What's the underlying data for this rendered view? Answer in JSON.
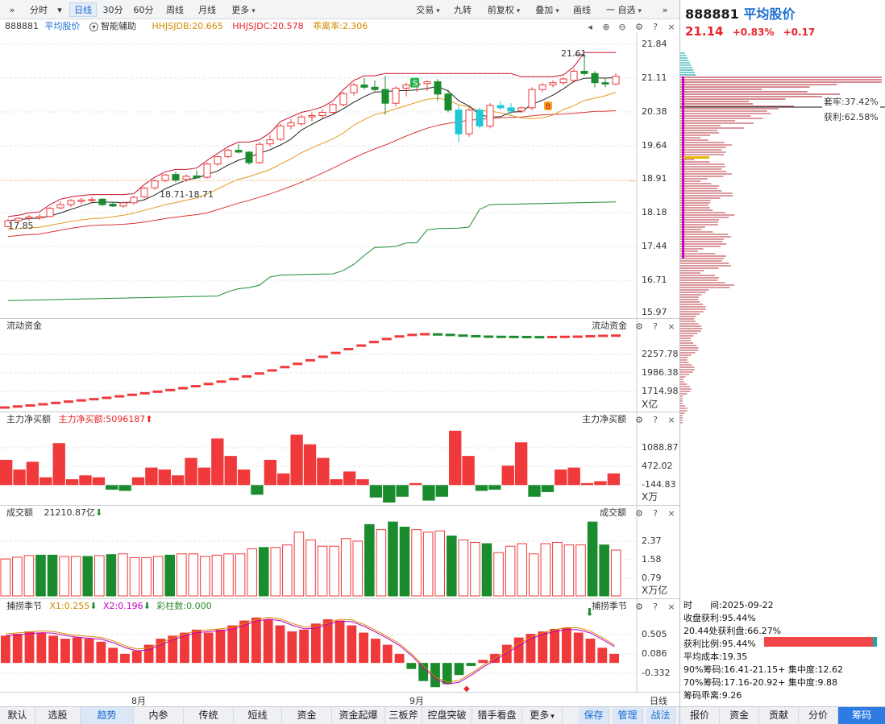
{
  "toolbar": {
    "collapse_icon": "double-chevron-right-icon",
    "periods": [
      "分时",
      "日线",
      "30分",
      "60分",
      "周线",
      "月线",
      "更多"
    ],
    "right_items": [
      "交易",
      "九转",
      "前复权",
      "叠加",
      "画线",
      "一 自选"
    ],
    "right_collapse_icon": "double-chevron-right-icon"
  },
  "main_header": {
    "code": "888881",
    "name": "平均股价",
    "assist": "智能辅助",
    "indicators": [
      {
        "text": "HHJSJDB:20.665",
        "color": "#d48a00"
      },
      {
        "text": "HHJSJDC:20.578",
        "color": "#e8242a"
      },
      {
        "text": "乖离率:2.306",
        "color": "#d48a00"
      }
    ]
  },
  "main_axis": [
    "21.84",
    "21.11",
    "20.38",
    "19.64",
    "18.91",
    "18.18",
    "17.44",
    "16.71",
    "15.97"
  ],
  "main_annotations": {
    "high": "21.61",
    "low": "17.85",
    "mid_label": "18.71-18.71",
    "signal_s": "S",
    "signal_b": "B"
  },
  "panes": {
    "liquidity": {
      "title": "流动资金",
      "title_right": "流动资金",
      "axis": [
        "2257.78",
        "1986.38",
        "1714.98"
      ],
      "unit": "X亿"
    },
    "main_net": {
      "title": "主力净买额",
      "indicator": "主力净买额:5096187",
      "title_right": "主力净买额",
      "axis": [
        "1088.87",
        "472.02",
        "-144.83"
      ],
      "unit": "X万"
    },
    "turnover": {
      "title": "成交额",
      "indicator": "21210.87亿",
      "title_right": "成交额",
      "axis": [
        "2.37",
        "1.58",
        "0.79"
      ],
      "unit": "X万亿"
    },
    "season": {
      "title": "捕捞季节",
      "indicators": [
        {
          "text": "X1:0.255",
          "color": "#d48a00"
        },
        {
          "text": "X2:0.196",
          "color": "#c000c0"
        },
        {
          "text": "彩柱数:0.000",
          "color": "#2a8a2a"
        }
      ],
      "title_right": "捕捞季节",
      "axis": [
        "0.505",
        "0.086",
        "-0.332"
      ]
    }
  },
  "x_axis": {
    "months": [
      "8月",
      "9月"
    ],
    "period_label": "日线"
  },
  "bottom_tabs": [
    "默认",
    "选股",
    "趋势",
    "内参",
    "传统",
    "短线",
    "资金",
    "资金起爆",
    "三板斧",
    "控盘突破",
    "猎手看盘",
    "更多",
    "保存",
    "管理",
    "战法"
  ],
  "bottom_active": "趋势",
  "right_panel": {
    "code": "888881",
    "name": "平均股价",
    "price": "21.14",
    "change_pct": "+0.83%",
    "change": "+0.17",
    "chip_labels": {
      "locked": "套牢:37.42%",
      "profit": "获利:62.58%"
    },
    "stats": [
      "时　　间:2025-09-22",
      "收盘获利:95.44%",
      "20.44处获利盘:66.27%",
      "获利比例:95.44%",
      "平均成本:19.35",
      "90%筹码:16.41-21.15+ 集中度:12.62",
      "70%筹码:17.16-20.92+ 集中度:9.88",
      "筹码乖离:9.26"
    ],
    "tabs": [
      "报价",
      "资金",
      "贡献",
      "分价",
      "筹码"
    ],
    "active_tab": "筹码"
  },
  "colors": {
    "up": "#f0393b",
    "down": "#1b8c2e",
    "accent": "#1a6fd1"
  },
  "chart_data": {
    "type": "candlestick",
    "x_months": [
      "8月",
      "9月"
    ],
    "ohlc": [
      [
        17.85,
        18.02,
        17.83,
        17.98
      ],
      [
        17.98,
        18.05,
        17.92,
        18.03
      ],
      [
        18.03,
        18.1,
        17.98,
        18.06
      ],
      [
        18.04,
        18.12,
        18.0,
        18.07
      ],
      [
        18.07,
        18.28,
        18.05,
        18.25
      ],
      [
        18.26,
        18.4,
        18.22,
        18.33
      ],
      [
        18.33,
        18.45,
        18.28,
        18.42
      ],
      [
        18.4,
        18.48,
        18.35,
        18.43
      ],
      [
        18.43,
        18.5,
        18.38,
        18.44
      ],
      [
        18.45,
        18.47,
        18.3,
        18.33
      ],
      [
        18.34,
        18.4,
        18.28,
        18.3
      ],
      [
        18.3,
        18.4,
        18.26,
        18.37
      ],
      [
        18.37,
        18.52,
        18.33,
        18.49
      ],
      [
        18.5,
        18.72,
        18.46,
        18.69
      ],
      [
        18.7,
        18.88,
        18.65,
        18.85
      ],
      [
        18.86,
        19.0,
        18.82,
        18.98
      ],
      [
        18.99,
        19.05,
        18.82,
        18.87
      ],
      [
        18.88,
        19.0,
        18.83,
        18.95
      ],
      [
        18.96,
        19.08,
        18.9,
        18.92
      ],
      [
        18.93,
        19.25,
        18.9,
        19.22
      ],
      [
        19.22,
        19.4,
        19.18,
        19.38
      ],
      [
        19.38,
        19.55,
        19.35,
        19.52
      ],
      [
        19.52,
        19.65,
        19.45,
        19.48
      ],
      [
        19.48,
        19.5,
        19.2,
        19.25
      ],
      [
        19.25,
        19.7,
        19.22,
        19.65
      ],
      [
        19.66,
        19.85,
        19.6,
        19.75
      ],
      [
        19.76,
        20.1,
        19.72,
        20.05
      ],
      [
        20.05,
        20.2,
        19.98,
        20.12
      ],
      [
        20.1,
        20.3,
        20.05,
        20.25
      ],
      [
        20.25,
        20.35,
        20.15,
        20.28
      ],
      [
        20.28,
        20.42,
        20.2,
        20.35
      ],
      [
        20.35,
        20.55,
        20.3,
        20.52
      ],
      [
        20.52,
        20.8,
        20.48,
        20.76
      ],
      [
        20.78,
        21.0,
        20.72,
        20.95
      ],
      [
        20.95,
        21.1,
        20.85,
        20.9
      ],
      [
        20.9,
        21.05,
        20.8,
        20.85
      ],
      [
        20.85,
        21.15,
        20.3,
        20.55
      ],
      [
        20.55,
        20.92,
        20.48,
        20.88
      ],
      [
        20.88,
        21.0,
        20.7,
        20.95
      ],
      [
        20.95,
        21.05,
        20.8,
        20.98
      ],
      [
        20.98,
        21.05,
        20.82,
        21.02
      ],
      [
        21.02,
        21.08,
        20.6,
        20.75
      ],
      [
        20.75,
        20.85,
        20.35,
        20.4
      ],
      [
        20.4,
        20.5,
        19.7,
        19.88
      ],
      [
        19.88,
        20.45,
        19.82,
        20.4
      ],
      [
        20.4,
        20.45,
        20.0,
        20.05
      ],
      [
        20.05,
        20.55,
        20.0,
        20.5
      ],
      [
        20.5,
        20.6,
        20.4,
        20.45
      ],
      [
        20.45,
        20.55,
        20.3,
        20.38
      ],
      [
        20.38,
        20.48,
        20.33,
        20.45
      ],
      [
        20.45,
        20.9,
        20.4,
        20.85
      ],
      [
        20.85,
        21.0,
        20.8,
        20.95
      ],
      [
        20.95,
        21.05,
        20.9,
        21.0
      ],
      [
        21.0,
        21.12,
        20.95,
        21.08
      ],
      [
        21.05,
        21.3,
        21.0,
        21.25
      ],
      [
        21.25,
        21.61,
        21.15,
        21.2
      ],
      [
        21.2,
        21.25,
        20.9,
        21.0
      ],
      [
        21.0,
        21.1,
        20.9,
        20.97
      ],
      [
        20.97,
        21.2,
        20.95,
        21.14
      ]
    ],
    "liquidity": [
      1690,
      1700,
      1710,
      1722,
      1735,
      1748,
      1760,
      1772,
      1785,
      1800,
      1815,
      1830,
      1846,
      1862,
      1880,
      1900,
      1922,
      1945,
      1970,
      1996,
      2025,
      2055,
      2088,
      2120,
      2155,
      2190,
      2228,
      2265,
      2300,
      2335,
      2365,
      2390,
      2405,
      2412,
      2410,
      2405,
      2398,
      2392,
      2388,
      2386,
      2385,
      2384,
      2383,
      2384,
      2386,
      2388,
      2392,
      2396,
      2398
    ],
    "main_net": [
      650,
      400,
      600,
      200,
      1080,
      150,
      250,
      200,
      -120,
      -150,
      200,
      450,
      400,
      250,
      700,
      450,
      1200,
      750,
      400,
      -250,
      650,
      300,
      1300,
      1050,
      700,
      150,
      350,
      150,
      -320,
      -450,
      -300,
      50,
      -400,
      -300,
      1400,
      750,
      -150,
      -120,
      500,
      1100,
      -300,
      -180,
      400,
      450,
      50,
      100,
      300
    ],
    "turnover": [
      1.45,
      1.52,
      1.58,
      1.6,
      1.6,
      1.55,
      1.55,
      1.55,
      1.58,
      1.62,
      1.65,
      1.5,
      1.5,
      1.55,
      1.6,
      1.65,
      1.65,
      1.55,
      1.6,
      1.65,
      1.65,
      1.85,
      1.9,
      1.9,
      2.0,
      2.5,
      2.2,
      1.95,
      1.95,
      2.25,
      2.15,
      2.8,
      2.6,
      2.9,
      2.7,
      2.6,
      2.5,
      2.55,
      2.35,
      2.2,
      2.1,
      2.05,
      1.7,
      1.95,
      2.05,
      1.65,
      2.05,
      2.1,
      2.0,
      2.0,
      2.9,
      2.0,
      1.8
    ],
    "season_bars": [
      0.45,
      0.48,
      0.52,
      0.5,
      0.45,
      0.4,
      0.42,
      0.4,
      0.35,
      0.25,
      0.15,
      0.2,
      0.3,
      0.4,
      0.45,
      0.5,
      0.55,
      0.5,
      0.55,
      0.62,
      0.7,
      0.75,
      0.72,
      0.62,
      0.52,
      0.55,
      0.65,
      0.72,
      0.7,
      0.62,
      0.5,
      0.4,
      0.3,
      0.15,
      -0.1,
      -0.3,
      -0.4,
      -0.35,
      -0.2,
      -0.05,
      0.05,
      0.15,
      0.3,
      0.42,
      0.48,
      0.52,
      0.56,
      0.58,
      0.5,
      0.4,
      0.25,
      0.15
    ],
    "ylim_main": [
      15.97,
      21.84
    ]
  }
}
